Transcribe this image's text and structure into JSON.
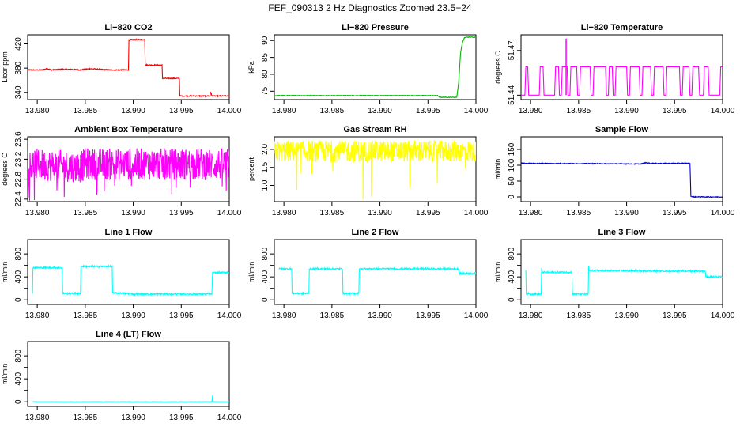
{
  "figure": {
    "title": "FEF_090313  2 Hz Diagnostics Zoomed 23.5−24"
  },
  "chart_data": [
    {
      "type": "line",
      "title": "Li−820 CO2",
      "ylabel": "Licor ppm",
      "xlim": [
        13.979,
        14.0
      ],
      "xticks": [
        13.98,
        13.985,
        13.99,
        13.995,
        14.0
      ],
      "xticklabels": [
        "13.980",
        "13.985",
        "13.990",
        "13.995",
        "14.000"
      ],
      "ylim": [
        328,
        435
      ],
      "yticks": [
        340,
        380,
        420
      ],
      "yticklabels": [
        "340",
        "380",
        "420"
      ],
      "color": "#ff0000",
      "noise": 0.8,
      "series": [
        {
          "x": [
            13.979,
            13.9805,
            13.981,
            13.9815,
            13.9825,
            13.9835,
            13.9845,
            13.9855,
            13.9865,
            13.9875,
            13.9885,
            13.9895,
            13.98955,
            13.9897,
            13.9905,
            13.9912,
            13.99125,
            13.99135,
            13.9925,
            13.993,
            13.99305,
            13.994,
            13.9948,
            13.99485,
            13.996,
            13.9975,
            13.998,
            13.99805,
            13.9982,
            13.99825,
            13.999,
            14.0
          ],
          "y": [
            377,
            377,
            379,
            377,
            378,
            378,
            377,
            379,
            378,
            377,
            377,
            377,
            426,
            427,
            427,
            427,
            385,
            385,
            385,
            385,
            363,
            363,
            363,
            334,
            334,
            334,
            334,
            341,
            334,
            334,
            334,
            334
          ]
        }
      ]
    },
    {
      "type": "line",
      "title": "Li−820 Pressure",
      "ylabel": "kPa",
      "xlim": [
        13.979,
        14.0
      ],
      "xticks": [
        13.98,
        13.985,
        13.99,
        13.995,
        14.0
      ],
      "xticklabels": [
        "13.980",
        "13.985",
        "13.990",
        "13.995",
        "14.000"
      ],
      "ylim": [
        72.5,
        91.7
      ],
      "yticks": [
        75,
        80,
        85,
        90
      ],
      "yticklabels": [
        "75",
        "80",
        "85",
        "90"
      ],
      "color": "#00bb00",
      "noise": 0.1,
      "series": [
        {
          "x": [
            13.979,
            13.996,
            13.9962,
            13.998,
            13.9982,
            13.9984,
            13.9986,
            13.9988,
            13.999,
            14.0
          ],
          "y": [
            73.7,
            73.7,
            73.2,
            73.2,
            77.5,
            86.5,
            89.5,
            90.8,
            91.0,
            91.0
          ]
        }
      ]
    },
    {
      "type": "line",
      "title": "Li−820 Temperature",
      "ylabel": "degrees C",
      "xlim": [
        13.979,
        14.0
      ],
      "xticks": [
        13.98,
        13.985,
        13.99,
        13.995,
        14.0
      ],
      "xticklabels": [
        "13.980",
        "13.985",
        "13.990",
        "13.995",
        "14.000"
      ],
      "ylim": [
        51.437,
        51.4805
      ],
      "yticks": [
        51.44,
        51.47
      ],
      "yticklabels": [
        "51.44",
        "51.47"
      ],
      "color": "#ff00ff",
      "noise": 0,
      "series": [
        {
          "x": [
            13.979,
            13.9794,
            13.9795,
            13.9797,
            13.9798,
            13.9809,
            13.981,
            13.9813,
            13.9814,
            13.9825,
            13.9826,
            13.9829,
            13.983,
            13.9832,
            13.9833,
            13.9838,
            13.9839,
            13.9841,
            13.9842,
            13.9848,
            13.9849,
            13.9851,
            13.9852,
            13.9862,
            13.9863,
            13.9865,
            13.9866,
            13.9878,
            13.9879,
            13.9881,
            13.9882,
            13.9885,
            13.9886,
            13.9888,
            13.9889,
            13.99,
            13.9901,
            13.9903,
            13.9904,
            13.9913,
            13.9914,
            13.9916,
            13.9917,
            13.9925,
            13.9926,
            13.9928,
            13.9929,
            13.9938,
            13.9939,
            13.9941,
            13.9942,
            13.9955,
            13.9956,
            13.9958,
            13.9959,
            13.9965,
            13.9966,
            13.9968,
            13.9969,
            13.9975,
            13.9976,
            13.998,
            13.9981,
            13.9985,
            13.9986,
            13.9997,
            13.9998,
            14.0
          ],
          "y": [
            51.44,
            51.44,
            51.459,
            51.459,
            51.44,
            51.44,
            51.459,
            51.459,
            51.44,
            51.44,
            51.459,
            51.459,
            51.44,
            51.44,
            51.459,
            51.459,
            51.44,
            51.44,
            51.459,
            51.459,
            51.44,
            51.44,
            51.459,
            51.459,
            51.44,
            51.44,
            51.459,
            51.459,
            51.44,
            51.44,
            51.459,
            51.459,
            51.44,
            51.44,
            51.459,
            51.459,
            51.44,
            51.44,
            51.459,
            51.459,
            51.44,
            51.44,
            51.459,
            51.459,
            51.44,
            51.44,
            51.459,
            51.459,
            51.44,
            51.44,
            51.459,
            51.459,
            51.44,
            51.44,
            51.459,
            51.459,
            51.44,
            51.44,
            51.459,
            51.459,
            51.44,
            51.44,
            51.459,
            51.459,
            51.44,
            51.44,
            51.459,
            51.459
          ]
        }
      ]
    },
    {
      "type": "line",
      "title": "Ambient Box Temperature",
      "ylabel": "degrees C",
      "xlim": [
        13.979,
        14.0
      ],
      "xticks": [
        13.98,
        13.985,
        13.99,
        13.995,
        14.0
      ],
      "xticklabels": [
        "13.980",
        "13.985",
        "13.990",
        "13.995",
        "14.000"
      ],
      "ylim": [
        22.35,
        23.65
      ],
      "yticks": [
        22.4,
        22.8,
        23.2,
        23.6
      ],
      "yticklabels": [
        "22.4",
        "22.8",
        "23.2",
        "23.6"
      ],
      "color": "#ff00ff",
      "noise": 0.32,
      "series": [
        {
          "x": [
            13.979,
            13.9845,
            13.985,
            13.99,
            13.995,
            14.0
          ],
          "y": [
            23.1,
            23.05,
            23.1,
            23.1,
            23.1,
            23.1
          ]
        }
      ]
    },
    {
      "type": "line",
      "title": "Gas Stream RH",
      "ylabel": "percent",
      "xlim": [
        13.979,
        14.0
      ],
      "xticks": [
        13.98,
        13.985,
        13.99,
        13.995,
        14.0
      ],
      "xticklabels": [
        "13.980",
        "13.985",
        "13.990",
        "13.995",
        "14.000"
      ],
      "ylim": [
        0.55,
        2.35
      ],
      "yticks": [
        1.0,
        1.5,
        2.0
      ],
      "yticklabels": [
        "1.0",
        "1.5",
        "2.0"
      ],
      "color": "#ffff00",
      "noise": 0.3,
      "series": [
        {
          "x": [
            13.979,
            13.985,
            13.99,
            13.995,
            14.0
          ],
          "y": [
            1.95,
            1.95,
            1.95,
            1.95,
            1.95
          ]
        }
      ]
    },
    {
      "type": "line",
      "title": "Sample Flow",
      "ylabel": "ml/min",
      "xlim": [
        13.979,
        14.0
      ],
      "xticks": [
        13.98,
        13.985,
        13.99,
        13.995,
        14.0
      ],
      "xticklabels": [
        "13.980",
        "13.985",
        "13.990",
        "13.995",
        "14.000"
      ],
      "ylim": [
        -15,
        190
      ],
      "yticks": [
        0,
        50,
        100,
        150
      ],
      "yticklabels": [
        "0",
        "50",
        "100",
        "150"
      ],
      "color": "#0000cc",
      "noise": 1.2,
      "series": [
        {
          "x": [
            13.979,
            13.986,
            13.9915,
            13.992,
            13.9925,
            13.9966,
            13.9967,
            13.997,
            14.0
          ],
          "y": [
            106,
            105,
            104,
            108,
            106,
            106,
            2,
            0,
            0
          ]
        }
      ]
    },
    {
      "type": "line",
      "title": "Line 1 Flow",
      "ylabel": "ml/min",
      "xlim": [
        13.979,
        14.0
      ],
      "xticks": [
        13.98,
        13.985,
        13.99,
        13.995,
        14.0
      ],
      "xticklabels": [
        "13.980",
        "13.985",
        "13.990",
        "13.995",
        "14.000"
      ],
      "ylim": [
        -80,
        1050
      ],
      "yticks": [
        0,
        200,
        400,
        600,
        800
      ],
      "yticklabels": [
        "0",
        "",
        "400",
        "",
        "800"
      ],
      "color": "#00ffff",
      "noise": 14,
      "series": [
        {
          "x": [
            13.9795,
            13.97955,
            13.9826,
            13.98265,
            13.9845,
            13.98455,
            13.9878,
            13.98785,
            13.9895,
            13.99,
            13.9982,
            13.99825,
            14.0
          ],
          "y": [
            110,
            560,
            560,
            110,
            110,
            580,
            580,
            120,
            110,
            100,
            100,
            470,
            480
          ]
        }
      ]
    },
    {
      "type": "line",
      "title": "Line 2 Flow",
      "ylabel": "ml/min",
      "xlim": [
        13.979,
        14.0
      ],
      "xticks": [
        13.98,
        13.985,
        13.99,
        13.995,
        14.0
      ],
      "xticklabels": [
        "13.980",
        "13.985",
        "13.990",
        "13.995",
        "14.000"
      ],
      "ylim": [
        -80,
        1050
      ],
      "yticks": [
        0,
        200,
        400,
        600,
        800
      ],
      "yticklabels": [
        "0",
        "",
        "400",
        "",
        "800"
      ],
      "color": "#00ffff",
      "noise": 14,
      "series": [
        {
          "x": [
            13.9795,
            13.9808,
            13.98085,
            13.9826,
            13.98265,
            13.9861,
            13.98615,
            13.9878,
            13.98785,
            13.9982,
            13.99825,
            14.0
          ],
          "y": [
            540,
            540,
            110,
            110,
            540,
            540,
            110,
            110,
            540,
            540,
            460,
            460
          ]
        }
      ]
    },
    {
      "type": "line",
      "title": "Line 3 Flow",
      "ylabel": "ml/min",
      "xlim": [
        13.979,
        14.0
      ],
      "xticks": [
        13.98,
        13.985,
        13.99,
        13.995,
        14.0
      ],
      "xticklabels": [
        "13.980",
        "13.985",
        "13.990",
        "13.995",
        "14.000"
      ],
      "ylim": [
        -80,
        1050
      ],
      "yticks": [
        0,
        200,
        400,
        600,
        800
      ],
      "yticklabels": [
        "0",
        "",
        "400",
        "",
        "800"
      ],
      "color": "#00ffff",
      "noise": 14,
      "series": [
        {
          "x": [
            13.9795,
            13.97955,
            13.98,
            13.9811,
            13.98115,
            13.9812,
            13.9843,
            13.98435,
            13.986,
            13.98605,
            13.9861,
            13.9982,
            13.99825,
            14.0
          ],
          "y": [
            500,
            110,
            100,
            100,
            560,
            480,
            480,
            100,
            100,
            580,
            510,
            500,
            400,
            400
          ]
        }
      ]
    },
    {
      "type": "line",
      "title": "Line 4 (LT) Flow",
      "ylabel": "ml/min",
      "xlim": [
        13.979,
        14.0
      ],
      "xticks": [
        13.98,
        13.985,
        13.99,
        13.995,
        14.0
      ],
      "xticklabels": [
        "13.980",
        "13.985",
        "13.990",
        "13.995",
        "14.000"
      ],
      "ylim": [
        -80,
        1050
      ],
      "yticks": [
        0,
        200,
        400,
        600,
        800
      ],
      "yticklabels": [
        "0",
        "",
        "400",
        "",
        "800"
      ],
      "color": "#00ffff",
      "noise": 3,
      "series": [
        {
          "x": [
            13.9795,
            13.9982,
            13.99825,
            13.9983,
            13.99835,
            14.0
          ],
          "y": [
            0,
            0,
            110,
            5,
            0,
            0
          ]
        }
      ]
    }
  ]
}
